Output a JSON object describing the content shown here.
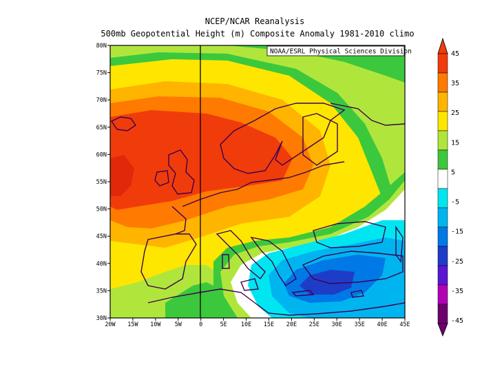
{
  "title": "NCEP/NCAR Reanalysis",
  "subtitle": "500mb Geopotential Height (m) Composite Anomaly 1981-2010 climo",
  "credit": "NOAA/ESRL Physical Sciences Division",
  "map": {
    "lon_range": [
      -20,
      45
    ],
    "lat_range": [
      30,
      80
    ],
    "lon_ticks": [
      "20W",
      "15W",
      "10W",
      "5W",
      "0",
      "5E",
      "10E",
      "15E",
      "20E",
      "25E",
      "30E",
      "35E",
      "40E",
      "45E"
    ],
    "lat_ticks": [
      "30N",
      "35N",
      "40N",
      "45N",
      "50N",
      "55N",
      "60N",
      "65N",
      "70N",
      "75N",
      "80N"
    ],
    "features": {
      "positive_anomaly_max": "North Atlantic / Scandinavia (45+)",
      "negative_anomaly_min": "Eastern Mediterranean (-25 to -35)"
    }
  },
  "colorbar": {
    "labels": [
      "45",
      "35",
      "25",
      "15",
      "5",
      "-5",
      "-15",
      "-25",
      "-35",
      "-45"
    ],
    "colors": [
      "#f03c0a",
      "#ff7a00",
      "#ffb400",
      "#ffe600",
      "#b0e63c",
      "#3cc83c",
      "#ffffff",
      "#00e6f0",
      "#00b4f0",
      "#0078e6",
      "#1e3cc8",
      "#5a14d2",
      "#b400b4",
      "#6e006e"
    ]
  }
}
